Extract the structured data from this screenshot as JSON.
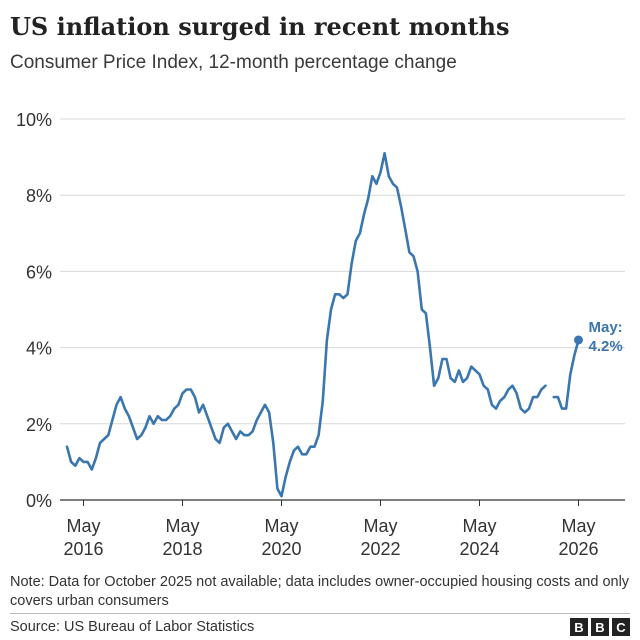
{
  "header": {
    "title": "US inflation surged in recent months",
    "subtitle": "Consumer Price Index, 12-month percentage change"
  },
  "chart_data": {
    "type": "line",
    "title": "US inflation surged in recent months",
    "subtitle": "Consumer Price Index, 12-month percentage change",
    "ylim": [
      0,
      10
    ],
    "yticks": [
      0,
      2,
      4,
      6,
      8,
      10
    ],
    "ytick_labels": [
      "0%",
      "2%",
      "4%",
      "6%",
      "8%",
      "10%"
    ],
    "xtick_labels": [
      {
        "month": "May",
        "year": "2016"
      },
      {
        "month": "May",
        "year": "2018"
      },
      {
        "month": "May",
        "year": "2020"
      },
      {
        "month": "May",
        "year": "2022"
      },
      {
        "month": "May",
        "year": "2024"
      },
      {
        "month": "May",
        "year": "2026"
      }
    ],
    "grid": true,
    "line_color": "#3a76af",
    "series": [
      {
        "segments": [
          {
            "start": "2016-01",
            "values": [
              1.4,
              1.0,
              0.9,
              1.1,
              1.0,
              1.0,
              0.8,
              1.1,
              1.5,
              1.6,
              1.7,
              2.1,
              2.5,
              2.7,
              2.4,
              2.2,
              1.9,
              1.6,
              1.7,
              1.9,
              2.2,
              2.0,
              2.2,
              2.1,
              2.1,
              2.2,
              2.4,
              2.5,
              2.8,
              2.9,
              2.9,
              2.7,
              2.3,
              2.5,
              2.2,
              1.9,
              1.6,
              1.5,
              1.9,
              2.0,
              1.8,
              1.6,
              1.8,
              1.7,
              1.7,
              1.8,
              2.1,
              2.3,
              2.5,
              2.3,
              1.5,
              0.3,
              0.1,
              0.6,
              1.0,
              1.3,
              1.4,
              1.2,
              1.2,
              1.4,
              1.4,
              1.7,
              2.6,
              4.2,
              5.0,
              5.4,
              5.4,
              5.3,
              5.4,
              6.2,
              6.8,
              7.0,
              7.5,
              7.9,
              8.5,
              8.3,
              8.6,
              9.1,
              8.5,
              8.3,
              8.2,
              7.7,
              7.1,
              6.5,
              6.4,
              6.0,
              5.0,
              4.9,
              4.0,
              3.0,
              3.2,
              3.7,
              3.7,
              3.2,
              3.1,
              3.4,
              3.1,
              3.2,
              3.5,
              3.4,
              3.3,
              3.0,
              2.9,
              2.5,
              2.4,
              2.6,
              2.7,
              2.9,
              3.0,
              2.8,
              2.4,
              2.3,
              2.4,
              2.7,
              2.7,
              2.9,
              3.0
            ]
          },
          {
            "start": "2025-11",
            "values": [
              2.7,
              2.7,
              2.4,
              2.4,
              3.3,
              3.8,
              4.2
            ]
          }
        ]
      }
    ],
    "annotation": {
      "date": "2026-05",
      "value": 4.2,
      "label_line1": "May:",
      "label_line2": "4.2%"
    }
  },
  "footer": {
    "note": "Note: Data for October 2025 not available; data includes owner-occupied housing costs and only covers urban consumers",
    "source": "Source: US Bureau of Labor Statistics",
    "logo_letters": [
      "B",
      "B",
      "C"
    ]
  }
}
